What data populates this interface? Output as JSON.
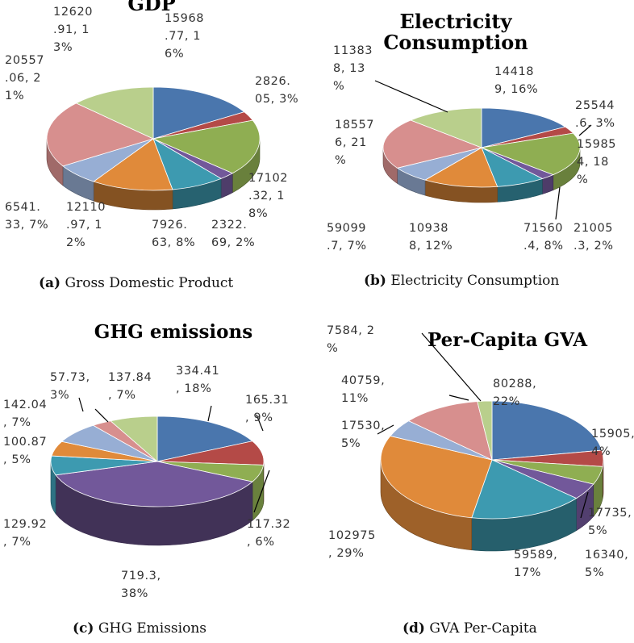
{
  "colors": {
    "blue": "#4a76ad",
    "red": "#b44a47",
    "green": "#8fae52",
    "purple": "#72589a",
    "teal": "#3d9ab0",
    "orange": "#e08a3a",
    "lightblue": "#97aed4",
    "pink": "#d78f8e",
    "lightgreen": "#b9cf8c"
  },
  "chart_data": [
    {
      "type": "pie",
      "title": "GDP",
      "caption_letter": "(a)",
      "caption_text": " Gross Domestic Product",
      "slices": [
        {
          "value": 15968.77,
          "label": "15968\n.77, 1\n6%",
          "color": "blue"
        },
        {
          "value": 2826.05,
          "label": "2826.\n05, 3%",
          "color": "red"
        },
        {
          "value": 17102.32,
          "label": "17102\n.32, 1\n8%",
          "color": "green"
        },
        {
          "value": 2322.69,
          "label": "2322.\n69, 2%",
          "color": "purple"
        },
        {
          "value": 7926.63,
          "label": "7926.\n63, 8%",
          "color": "teal"
        },
        {
          "value": 12110.97,
          "label": "12110\n.97, 1\n2%",
          "color": "orange"
        },
        {
          "value": 6541.33,
          "label": "6541.\n33, 7%",
          "color": "lightblue"
        },
        {
          "value": 20557.06,
          "label": "20557\n.06, 2\n1%",
          "color": "pink"
        },
        {
          "value": 12620.91,
          "label": "12620\n.91, 1\n3%",
          "color": "lightgreen"
        }
      ]
    },
    {
      "type": "pie",
      "title": "Electricity\nConsumption",
      "caption_letter": "(b)",
      "caption_text": " Electricity Consumption",
      "slices": [
        {
          "value": 144189,
          "label": "14418\n9, 16%",
          "color": "blue"
        },
        {
          "value": 25544.6,
          "label": "25544\n.6, 3%",
          "color": "red"
        },
        {
          "value": 159854,
          "label": "15985\n4, 18\n%",
          "color": "green"
        },
        {
          "value": 21005.3,
          "label": "21005\n.3, 2%",
          "color": "purple"
        },
        {
          "value": 71560.4,
          "label": "71560\n.4, 8%",
          "color": "teal"
        },
        {
          "value": 109388,
          "label": "10938\n8, 12%",
          "color": "orange"
        },
        {
          "value": 59099.7,
          "label": "59099\n.7, 7%",
          "color": "lightblue"
        },
        {
          "value": 185576,
          "label": "18557\n6, 21\n%",
          "color": "pink"
        },
        {
          "value": 113838,
          "label": "11383\n8, 13\n%",
          "color": "lightgreen"
        }
      ]
    },
    {
      "type": "pie",
      "title": "GHG emissions",
      "caption_letter": "(c)",
      "caption_text": " GHG Emissions",
      "slices": [
        {
          "value": 334.41,
          "label": "334.41\n, 18%",
          "color": "blue"
        },
        {
          "value": 165.31,
          "label": "165.31\n, 9%",
          "color": "red"
        },
        {
          "value": 117.32,
          "label": "117.32\n, 6%",
          "color": "green"
        },
        {
          "value": 719.3,
          "label": "719.3,\n38%",
          "color": "purple"
        },
        {
          "value": 129.92,
          "label": "129.92\n, 7%",
          "color": "teal"
        },
        {
          "value": 100.87,
          "label": "100.87\n, 5%",
          "color": "orange"
        },
        {
          "value": 142.04,
          "label": "142.04\n, 7%",
          "color": "lightblue"
        },
        {
          "value": 57.73,
          "label": "57.73,\n3%",
          "color": "pink"
        },
        {
          "value": 137.84,
          "label": "137.84\n, 7%",
          "color": "lightgreen"
        }
      ]
    },
    {
      "type": "pie",
      "title": "Per-Capita GVA",
      "caption_letter": "(d)",
      "caption_text": " GVA Per-Capita",
      "slices": [
        {
          "value": 80288,
          "label": "80288,\n22%",
          "color": "blue"
        },
        {
          "value": 15905,
          "label": "15905,\n4%",
          "color": "red"
        },
        {
          "value": 17735,
          "label": "17735,\n5%",
          "color": "green"
        },
        {
          "value": 16340,
          "label": "16340,\n5%",
          "color": "purple"
        },
        {
          "value": 59589,
          "label": "59589,\n17%",
          "color": "teal"
        },
        {
          "value": 102975,
          "label": "102975\n, 29%",
          "color": "orange"
        },
        {
          "value": 17530,
          "label": "17530,\n5%",
          "color": "lightblue"
        },
        {
          "value": 40759,
          "label": "40759,\n11%",
          "color": "pink"
        },
        {
          "value": 7584,
          "label": "7584, 2\n%",
          "color": "lightgreen"
        }
      ]
    }
  ]
}
